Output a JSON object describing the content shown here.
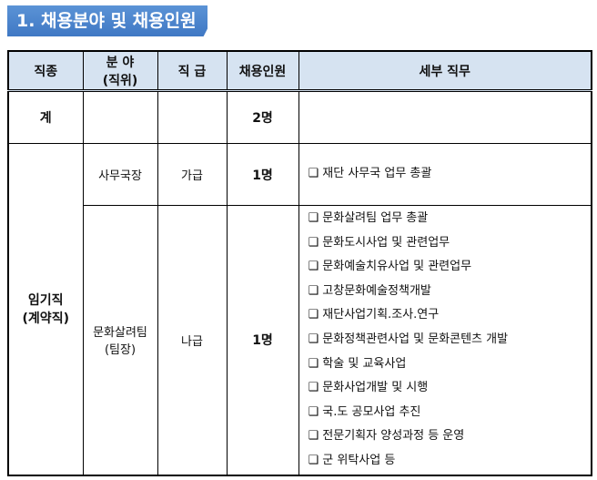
{
  "title": "1. 채용분야 및 채용인원",
  "headers": [
    "직종",
    "분 야\n(직위)",
    "직 급",
    "채용인원",
    "세부 직무"
  ],
  "header_field_line1": "분 야",
  "header_field_line2": "(직위)",
  "total": {
    "label": "계",
    "count": "2명"
  },
  "job_type": {
    "line1": "임기직",
    "line2": "(계약직)"
  },
  "rows": [
    {
      "field": "사무국장",
      "grade": "가급",
      "count": "1명",
      "duties": [
        "재단 사무국 업무 총괄"
      ]
    },
    {
      "field_line1": "문화살려팀",
      "field_line2": "(팀장)",
      "grade": "나급",
      "count": "1명",
      "duties": [
        "문화살려팀 업무 총괄",
        "문화도시사업 및 관련업무",
        "문화예술치유사업 및 관련업무",
        "고창문화예술정책개발",
        "재단사업기획.조사.연구",
        "문화정책관련사업 및 문화콘텐츠 개발",
        "학술 및 교육사업",
        "문화사업개발 및 시행",
        "국.도 공모사업 추진",
        "전문기획자 양성과정 등 운영",
        "군 위탁사업 등"
      ]
    }
  ],
  "bullet": "❑"
}
